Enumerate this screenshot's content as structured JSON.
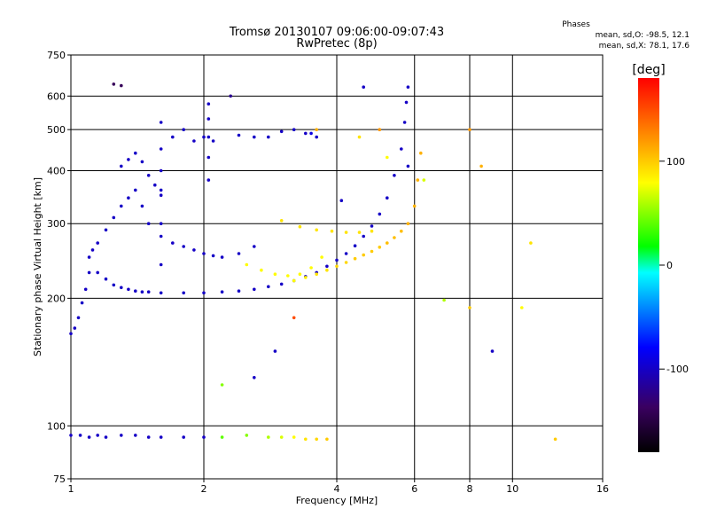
{
  "chart_data": {
    "type": "scatter",
    "title": "Tromsø 20130107 09:06:00-09:07:43",
    "subtitle": "RwPretec (8p)",
    "xlabel": "Frequency [MHz]",
    "ylabel": "Stationary phase Virtual Height [km]",
    "x_scale": "log",
    "y_scale": "log",
    "xlim": [
      1,
      16
    ],
    "ylim": [
      75,
      750
    ],
    "x_ticks": [
      1,
      2,
      4,
      6,
      8,
      10,
      16
    ],
    "y_ticks": [
      75,
      100,
      200,
      300,
      400,
      500,
      600,
      750
    ],
    "grid": true,
    "phase_info": {
      "title": "Phases",
      "line_o": "mean, sd,O: -98.5, 12.1",
      "line_x": "mean, sd,X:  78.1, 17.6"
    },
    "colorbar": {
      "label": "[deg]",
      "range": [
        -180,
        180
      ],
      "ticks": [
        100,
        0,
        -100
      ],
      "colors": [
        "#000000",
        "#3a0060",
        "#0000ff",
        "#00ffff",
        "#00ff00",
        "#ffff00",
        "#ff8000",
        "#ff0000"
      ]
    },
    "series": [
      {
        "x": [
          1.0,
          1.05,
          1.1,
          1.15,
          1.2,
          1.3,
          1.4,
          1.5,
          1.6,
          1.8,
          2.0,
          2.2,
          2.5,
          2.8,
          3.0,
          3.2,
          3.4,
          3.6,
          3.8
        ],
        "y": [
          95,
          95,
          94,
          95,
          94,
          95,
          95,
          94,
          94,
          94,
          94,
          94,
          95,
          94,
          94,
          94,
          93,
          93,
          93
        ],
        "phase": [
          -100,
          -100,
          -100,
          -100,
          -100,
          -100,
          -100,
          -100,
          -100,
          -100,
          -100,
          40,
          50,
          60,
          70,
          80,
          90,
          95,
          100
        ]
      },
      {
        "x": [
          1.0,
          1.02,
          1.04,
          1.06,
          1.08,
          1.1,
          1.12
        ],
        "y": [
          165,
          170,
          180,
          195,
          210,
          230,
          260
        ],
        "phase": [
          -100,
          -100,
          -100,
          -100,
          -100,
          -100,
          -100
        ]
      },
      {
        "x": [
          1.15,
          1.2,
          1.25,
          1.3,
          1.35,
          1.4,
          1.45,
          1.5,
          1.6,
          1.8,
          2.0,
          2.2,
          2.4,
          2.6,
          2.8,
          3.0,
          3.2,
          3.4,
          3.6,
          3.8,
          4.0,
          4.2,
          4.4,
          4.6,
          4.8,
          5.0,
          5.2,
          5.4,
          5.6,
          5.7,
          5.75,
          5.8
        ],
        "y": [
          230,
          222,
          215,
          212,
          210,
          208,
          207,
          207,
          206,
          206,
          206,
          207,
          208,
          210,
          213,
          216,
          220,
          225,
          230,
          238,
          246,
          255,
          266,
          280,
          296,
          316,
          345,
          390,
          450,
          520,
          580,
          630
        ],
        "phase": [
          -100,
          -100,
          -100,
          -100,
          -100,
          -100,
          -100,
          -100,
          -100,
          -100,
          -100,
          -100,
          -100,
          -100,
          -100,
          -100,
          -100,
          -100,
          -100,
          -100,
          -100,
          -100,
          -100,
          -100,
          -100,
          -100,
          -100,
          -100,
          -100,
          -100,
          -100,
          -100
        ]
      },
      {
        "x": [
          3.2,
          3.4,
          3.6,
          3.8,
          4.0,
          4.2,
          4.4,
          4.6,
          4.8,
          5.0,
          5.2,
          5.4,
          5.6,
          5.8,
          6.0,
          6.1,
          6.2
        ],
        "y": [
          220,
          224,
          228,
          233,
          238,
          243,
          248,
          253,
          258,
          264,
          270,
          278,
          288,
          300,
          330,
          380,
          440
        ],
        "phase": [
          80,
          85,
          90,
          90,
          95,
          95,
          100,
          100,
          100,
          100,
          105,
          105,
          105,
          110,
          110,
          110,
          110
        ]
      },
      {
        "x": [
          2.5,
          2.7,
          2.9,
          3.1,
          3.3,
          3.5,
          3.7
        ],
        "y": [
          240,
          233,
          228,
          226,
          228,
          236,
          250
        ],
        "phase": [
          80,
          80,
          80,
          80,
          80,
          80,
          80
        ]
      },
      {
        "x": [
          3.0,
          3.3,
          3.6,
          3.9,
          4.2,
          4.5,
          4.8
        ],
        "y": [
          305,
          295,
          290,
          288,
          286,
          286,
          288
        ],
        "phase": [
          90,
          90,
          90,
          90,
          90,
          90,
          90
        ]
      },
      {
        "x": [
          1.1,
          1.15,
          1.2,
          1.25,
          1.3,
          1.35,
          1.4,
          1.45,
          1.5,
          1.6,
          1.7,
          1.8,
          1.9,
          2.0,
          2.1,
          2.2,
          2.4,
          2.6
        ],
        "y": [
          250,
          270,
          290,
          310,
          330,
          345,
          360,
          330,
          300,
          280,
          270,
          265,
          260,
          255,
          252,
          250,
          255,
          265
        ],
        "phase": [
          -100,
          -100,
          -100,
          -100,
          -100,
          -100,
          -100,
          -100,
          -100,
          -100,
          -100,
          -100,
          -100,
          -100,
          -100,
          -100,
          -100,
          -100
        ]
      },
      {
        "x": [
          1.3,
          1.35,
          1.4,
          1.45,
          1.5,
          1.55,
          1.6,
          1.7,
          1.8,
          1.9,
          2.0,
          2.1,
          2.4,
          2.6,
          2.8,
          3.0,
          3.2,
          3.4,
          3.6
        ],
        "y": [
          410,
          425,
          440,
          420,
          390,
          370,
          360,
          480,
          500,
          470,
          480,
          470,
          485,
          480,
          480,
          495,
          500,
          490,
          480
        ],
        "phase": [
          -100,
          -100,
          -100,
          -100,
          -100,
          -100,
          -100,
          -100,
          -100,
          -100,
          -100,
          -100,
          -100,
          -100,
          -100,
          -100,
          -100,
          -100,
          -100
        ]
      },
      {
        "x": [
          1.6,
          1.6,
          1.6,
          1.6,
          1.6,
          1.6
        ],
        "y": [
          240,
          300,
          350,
          400,
          450,
          520
        ],
        "phase": [
          -100,
          -100,
          -100,
          -100,
          -100,
          -100
        ]
      },
      {
        "x": [
          2.05,
          2.05,
          2.05,
          2.05,
          2.05
        ],
        "y": [
          380,
          430,
          480,
          530,
          575
        ],
        "phase": [
          -100,
          -100,
          -100,
          -100,
          -100
        ]
      },
      {
        "x": [
          1.25,
          1.3,
          2.3,
          3.6,
          4.5,
          5.2,
          5.8,
          6.3,
          7.0,
          8.0,
          8.5,
          9.0,
          11.0,
          12.5,
          4.6,
          3.5,
          5.0,
          4.1,
          2.6,
          2.9,
          2.2,
          3.2,
          8.0,
          10.5
        ],
        "y": [
          640,
          635,
          600,
          500,
          480,
          430,
          410,
          380,
          198,
          190,
          410,
          150,
          270,
          93,
          630,
          490,
          500,
          340,
          130,
          150,
          125,
          180,
          500,
          190
        ],
        "phase": [
          -140,
          -140,
          -120,
          110,
          90,
          80,
          -100,
          70,
          60,
          100,
          110,
          -100,
          90,
          100,
          -100,
          -90,
          120,
          -100,
          -100,
          -100,
          50,
          150,
          120,
          80
        ]
      }
    ]
  }
}
